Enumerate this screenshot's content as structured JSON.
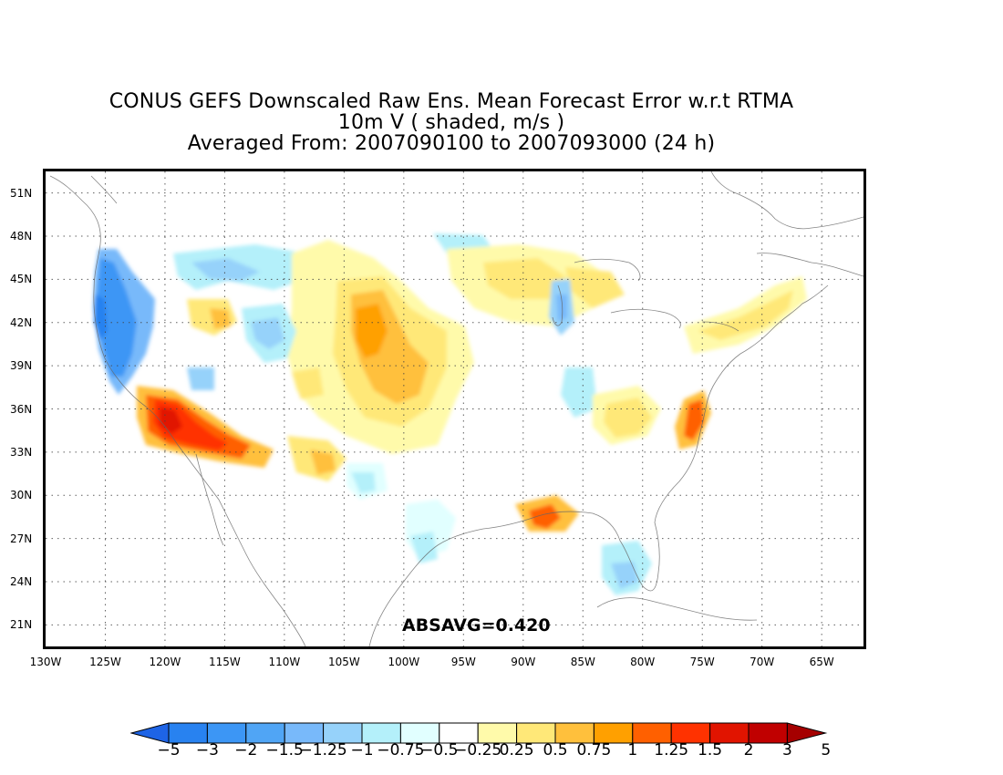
{
  "title": {
    "line1": "CONUS GEFS Downscaled Raw Ens. Mean Forecast Error w.r.t RTMA",
    "line2": "10m V ( shaded, m/s )",
    "line3": "Averaged From: 2007090100 to 2007093000 (24 h)"
  },
  "annotation": {
    "absavg": "ABSAVG=0.420"
  },
  "axes": {
    "lat_labels": [
      "51N",
      "48N",
      "45N",
      "42N",
      "39N",
      "36N",
      "33N",
      "30N",
      "27N",
      "24N",
      "21N"
    ],
    "lon_labels": [
      "130W",
      "125W",
      "120W",
      "115W",
      "110W",
      "105W",
      "100W",
      "95W",
      "90W",
      "85W",
      "80W",
      "75W",
      "70W",
      "65W"
    ],
    "lat_range": [
      19.5,
      52.5
    ],
    "lon_range": [
      -130,
      -61.5
    ],
    "grid": "dotted"
  },
  "colorbar": {
    "labels": [
      "−5",
      "−3",
      "−2",
      "−1.5",
      "−1.25",
      "−1",
      "−0.75",
      "−0.5",
      "−0.25",
      "0.25",
      "0.5",
      "0.75",
      "1",
      "1.25",
      "1.5",
      "2",
      "3",
      "5"
    ],
    "colors": [
      "#1e64e6",
      "#2882f0",
      "#3c96f5",
      "#50a5f5",
      "#78b9fa",
      "#96d2fa",
      "#b4f0fa",
      "#e1ffff",
      "#ffffff",
      "#fffaaa",
      "#ffe878",
      "#ffc03c",
      "#ffa000",
      "#ff6000",
      "#ff3200",
      "#e11400",
      "#c00000",
      "#a50000"
    ]
  },
  "chart_data": {
    "type": "heatmap",
    "variable": "10m V",
    "units": "m/s",
    "region": "CONUS",
    "period": [
      "2007090100",
      "2007093000"
    ],
    "absavg": 0.42,
    "levels": [
      -5,
      -3,
      -2,
      -1.5,
      -1.25,
      -1,
      -0.75,
      -0.5,
      -0.25,
      0.25,
      0.5,
      0.75,
      1,
      1.25,
      1.5,
      2,
      3,
      5
    ],
    "notable_regions": [
      {
        "lon": -124.2,
        "lat": 42.5,
        "value": -2
      },
      {
        "lon": -122.5,
        "lat": 40.5,
        "value": -1.5
      },
      {
        "lon": -119.5,
        "lat": 35.5,
        "value": 2
      },
      {
        "lon": -116.5,
        "lat": 34.5,
        "value": 1.5
      },
      {
        "lon": -102.5,
        "lat": 41,
        "value": 1
      },
      {
        "lon": -101,
        "lat": 38,
        "value": 0.75
      },
      {
        "lon": -87.8,
        "lat": 28.5,
        "value": 1.25
      },
      {
        "lon": -75.5,
        "lat": 35.5,
        "value": 1.25
      },
      {
        "lon": -82,
        "lat": 34.5,
        "value": 0.5
      },
      {
        "lon": -87,
        "lat": 43.5,
        "value": -0.75
      }
    ]
  }
}
